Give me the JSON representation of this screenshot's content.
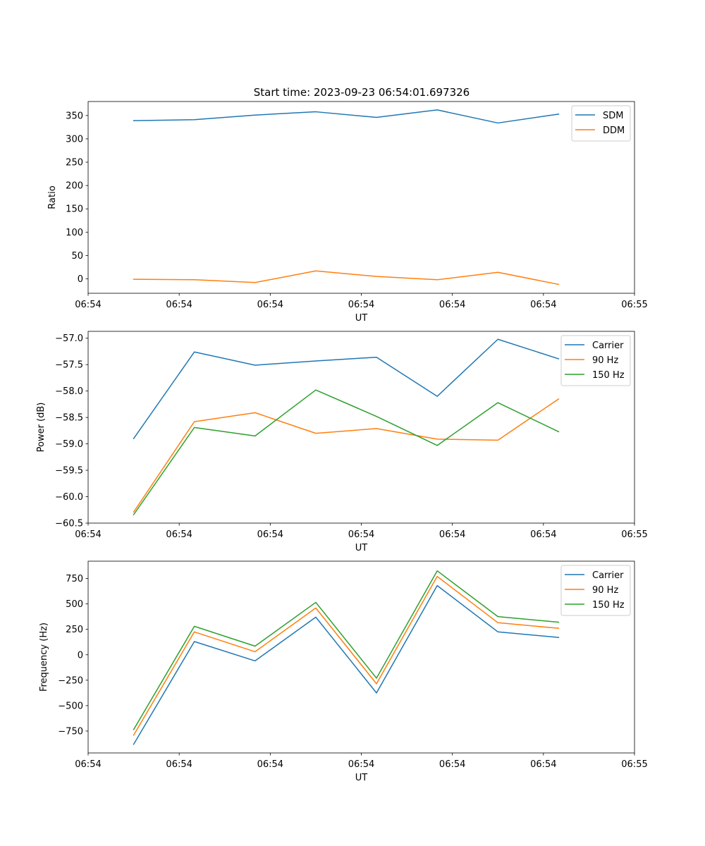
{
  "figure": {
    "title": "Start time: 2023-09-23 06:54:01.697326"
  },
  "colors": {
    "blue": "#1f77b4",
    "orange": "#ff7f0e",
    "green": "#2ca02c"
  },
  "chart_data": [
    {
      "type": "line",
      "title": "Start time: 2023-09-23 06:54:01.697326",
      "xlabel": "UT",
      "ylabel": "Ratio",
      "x": [
        1,
        2,
        3,
        4,
        5,
        6,
        7,
        8
      ],
      "xlim": [
        0.25,
        9.25
      ],
      "x_ticks": [
        0.25,
        1.75,
        3.25,
        4.75,
        6.25,
        7.75,
        9.25
      ],
      "x_tick_labels": [
        "06:54",
        "06:54",
        "06:54",
        "06:54",
        "06:54",
        "06:54",
        "06:55"
      ],
      "ylim": [
        -31,
        380
      ],
      "y_ticks": [
        0,
        50,
        100,
        150,
        200,
        250,
        300,
        350
      ],
      "y_tick_labels": [
        "0",
        "50",
        "100",
        "150",
        "200",
        "250",
        "300",
        "350"
      ],
      "legend_position": "top-right",
      "series": [
        {
          "name": "SDM",
          "color": "#1f77b4",
          "values": [
            339,
            341,
            351,
            358,
            346,
            362,
            334,
            353
          ]
        },
        {
          "name": "DDM",
          "color": "#ff7f0e",
          "values": [
            -1,
            -2,
            -8,
            17,
            5,
            -2,
            14,
            -12
          ]
        }
      ]
    },
    {
      "type": "line",
      "xlabel": "UT",
      "ylabel": "Power (dB)",
      "x": [
        1,
        2,
        3,
        4,
        5,
        6,
        7,
        8
      ],
      "xlim": [
        0.25,
        9.25
      ],
      "x_ticks": [
        0.25,
        1.75,
        3.25,
        4.75,
        6.25,
        7.75,
        9.25
      ],
      "x_tick_labels": [
        "06:54",
        "06:54",
        "06:54",
        "06:54",
        "06:54",
        "06:54",
        "06:55"
      ],
      "ylim": [
        -60.5,
        -56.87
      ],
      "y_ticks": [
        -60.5,
        -60.0,
        -59.5,
        -59.0,
        -58.5,
        -58.0,
        -57.5,
        -57.0
      ],
      "y_tick_labels": [
        "−60.5",
        "−60.0",
        "−59.5",
        "−59.0",
        "−58.5",
        "−58.0",
        "−57.5",
        "−57.0"
      ],
      "legend_position": "top-right",
      "series": [
        {
          "name": "Carrier",
          "color": "#1f77b4",
          "values": [
            -58.9,
            -57.26,
            -57.51,
            -57.43,
            -57.36,
            -58.1,
            -57.02,
            -57.39
          ]
        },
        {
          "name": "90 Hz",
          "color": "#ff7f0e",
          "values": [
            -60.29,
            -58.58,
            -58.41,
            -58.8,
            -58.71,
            -58.91,
            -58.93,
            -58.15
          ]
        },
        {
          "name": "150 Hz",
          "color": "#2ca02c",
          "values": [
            -60.34,
            -58.69,
            -58.85,
            -57.98,
            -58.48,
            -59.03,
            -58.22,
            -58.77
          ]
        }
      ]
    },
    {
      "type": "line",
      "xlabel": "UT",
      "ylabel": "Frequency (Hz)",
      "x": [
        1,
        2,
        3,
        4,
        5,
        6,
        7,
        8
      ],
      "xlim": [
        0.25,
        9.25
      ],
      "x_ticks": [
        0.25,
        1.75,
        3.25,
        4.75,
        6.25,
        7.75,
        9.25
      ],
      "x_tick_labels": [
        "06:54",
        "06:54",
        "06:54",
        "06:54",
        "06:54",
        "06:54",
        "06:55"
      ],
      "ylim": [
        -965,
        920
      ],
      "y_ticks": [
        -750,
        -500,
        -250,
        0,
        250,
        500,
        750
      ],
      "y_tick_labels": [
        "−750",
        "−500",
        "−250",
        "0",
        "250",
        "500",
        "750"
      ],
      "legend_position": "top-right",
      "series": [
        {
          "name": "Carrier",
          "color": "#1f77b4",
          "values": [
            -880,
            130,
            -60,
            370,
            -375,
            680,
            225,
            170
          ]
        },
        {
          "name": "90 Hz",
          "color": "#ff7f0e",
          "values": [
            -790,
            225,
            30,
            460,
            -285,
            770,
            315,
            260
          ]
        },
        {
          "name": "150 Hz",
          "color": "#2ca02c",
          "values": [
            -735,
            280,
            85,
            515,
            -230,
            825,
            375,
            320
          ]
        }
      ]
    }
  ]
}
